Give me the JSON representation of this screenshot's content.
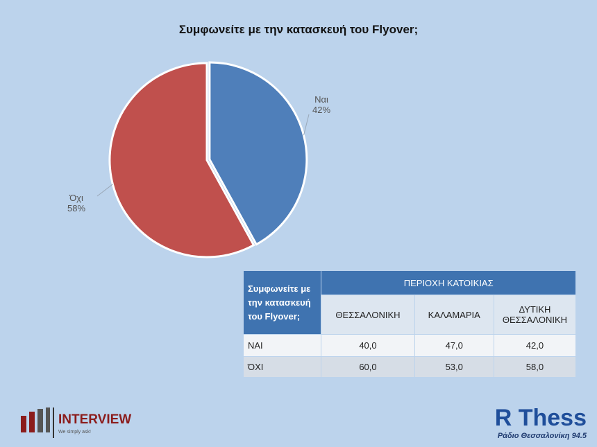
{
  "chart_data": {
    "type": "pie",
    "title": "Συμφωνείτε με την κατασκευή του Flyover;",
    "categories": [
      "Ναι",
      "Όχι"
    ],
    "values": [
      42,
      58
    ],
    "value_labels": [
      "42%",
      "58%"
    ],
    "colors": [
      "#4f7fba",
      "#c0504d"
    ]
  },
  "table": {
    "corner": "Συμφωνείτε με την κατασκευή του Flyover;",
    "group_header": "ΠΕΡΙΟΧΗ ΚΑΤΟΙΚΙΑΣ",
    "columns": [
      "ΘΕΣΣΑΛΟΝΙΚΗ",
      "ΚΑΛΑΜΑΡΙΑ",
      "ΔΥΤΙΚΗ ΘΕΣΣΑΛΟΝΙΚΗ"
    ],
    "rows": [
      [
        "ΝΑΙ",
        "40,0",
        "47,0",
        "42,0"
      ],
      [
        "ΌΧΙ",
        "60,0",
        "53,0",
        "58,0"
      ]
    ]
  },
  "logos": {
    "left_name": "INTERVIEW",
    "left_slogan": "We simply ask!",
    "right_name": "R Thess",
    "right_sub": "Ράδιο Θεσσαλονίκη 94.5"
  }
}
